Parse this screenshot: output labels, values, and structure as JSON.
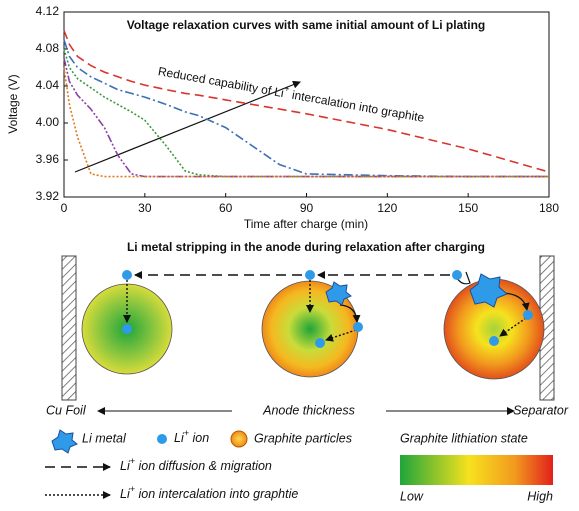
{
  "chart_data": {
    "type": "line",
    "title": "Voltage relaxation curves with same initial amount of Li plating",
    "xlabel": "Time after charge (min)",
    "ylabel": "Voltage (V)",
    "annotation": [
      "Reduced capability of Li",
      "+",
      " intercalation into graphite"
    ],
    "x": [
      0,
      2,
      5,
      10,
      15,
      20,
      25,
      30,
      38,
      45,
      50,
      60,
      70,
      80,
      90,
      120,
      150,
      180
    ],
    "series": [
      {
        "color": "#d9352f",
        "style": "dashed",
        "values": [
          4.1,
          4.085,
          4.072,
          4.062,
          4.055,
          4.05,
          4.045,
          4.041,
          4.036,
          4.032,
          4.03,
          4.025,
          4.02,
          4.015,
          4.01,
          3.993,
          3.972,
          3.947
        ]
      },
      {
        "color": "#3d6fb6",
        "style": "dashdot",
        "values": [
          4.09,
          4.072,
          4.06,
          4.05,
          4.043,
          4.036,
          4.032,
          4.028,
          4.02,
          4.012,
          4.008,
          3.995,
          3.975,
          3.955,
          3.945,
          3.943,
          3.942,
          3.942
        ]
      },
      {
        "color": "#3a9a3a",
        "style": "dotted",
        "values": [
          4.08,
          4.06,
          4.048,
          4.038,
          4.028,
          4.02,
          4.012,
          4.003,
          3.975,
          3.948,
          3.944,
          3.942,
          3.942,
          3.942,
          3.942,
          3.942,
          3.942,
          3.942
        ]
      },
      {
        "color": "#8b3fa8",
        "style": "dashdotdot",
        "values": [
          4.07,
          4.045,
          4.03,
          4.015,
          3.995,
          3.965,
          3.945,
          3.942,
          3.942,
          3.942,
          3.942,
          3.942,
          3.942,
          3.942,
          3.942,
          3.942,
          3.942,
          3.942
        ]
      },
      {
        "color": "#e07b1a",
        "style": "dotted",
        "values": [
          4.06,
          4.02,
          3.985,
          3.945,
          3.942,
          3.942,
          3.942,
          3.942,
          3.942,
          3.942,
          3.942,
          3.942,
          3.942,
          3.942,
          3.942,
          3.942,
          3.942,
          3.942
        ]
      }
    ],
    "xlim": [
      0,
      180
    ],
    "xticks": [
      0,
      30,
      60,
      90,
      120,
      150,
      180
    ],
    "ylim": [
      3.92,
      4.12
    ],
    "yticks": [
      3.92,
      3.96,
      {
        "value": 4,
        "label": "4.00"
      },
      4.04,
      4.08,
      4.12
    ]
  },
  "diagram": {
    "title": "Li metal stripping in the anode during relaxation after charging",
    "left_label": "Cu Foil",
    "middle_label": "Anode thickness",
    "right_label": "Separator",
    "legend": {
      "li_metal": "Li metal",
      "li_ion": [
        "Li",
        "+",
        " ion"
      ],
      "graphite": "Graphite particles",
      "state_title": "Graphite lithiation state",
      "diffusion": [
        "Li",
        "+",
        " ion diffusion & migration"
      ],
      "intercalation": [
        "Li",
        "+",
        " ion intercalation into graphtie"
      ],
      "low": "Low",
      "high": "High"
    }
  }
}
